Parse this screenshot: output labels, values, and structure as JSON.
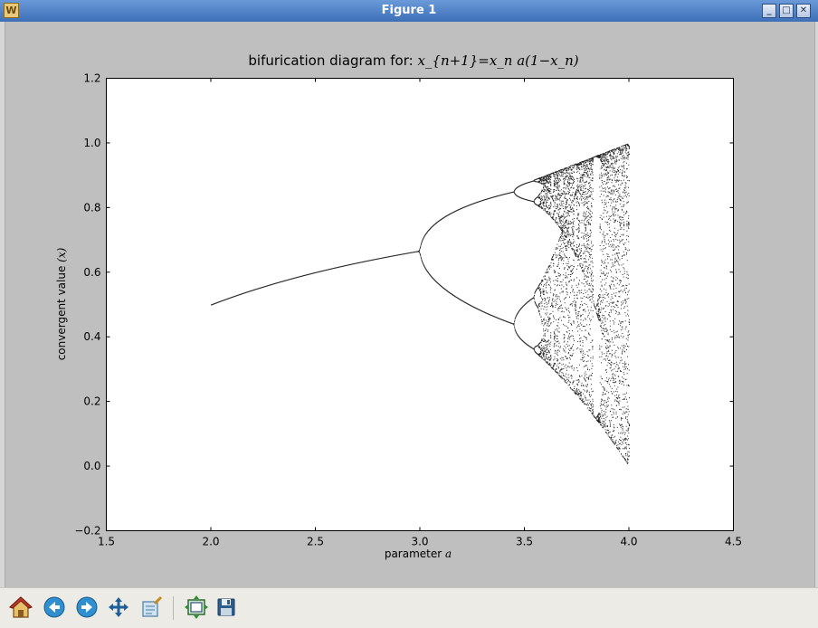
{
  "window": {
    "title": "Figure 1"
  },
  "toolbar": {
    "buttons": [
      {
        "name": "home-button",
        "icon": "home-icon"
      },
      {
        "name": "back-button",
        "icon": "back-arrow-icon"
      },
      {
        "name": "forward-button",
        "icon": "forward-arrow-icon"
      },
      {
        "name": "pan-button",
        "icon": "move-icon"
      },
      {
        "name": "zoom-button",
        "icon": "zoom-rect-icon"
      },
      {
        "name": "subplots-button",
        "icon": "subplots-icon"
      },
      {
        "name": "save-button",
        "icon": "save-icon"
      }
    ]
  },
  "chart_data": {
    "type": "scatter",
    "title_text": "bifurication diagram for: ",
    "title_math": "x_{n+1}=x_n a(1−x_n)",
    "xlabel_text": "parameter ",
    "xlabel_math": "a",
    "ylabel_text": "convergent value ",
    "ylabel_math": "(x)",
    "xlim": [
      1.5,
      4.5
    ],
    "ylim": [
      -0.2,
      1.2
    ],
    "xticks": [
      "1.5",
      "2.0",
      "2.5",
      "3.0",
      "3.5",
      "4.0",
      "4.5"
    ],
    "yticks": [
      "−0.2",
      "0.0",
      "0.2",
      "0.4",
      "0.6",
      "0.8",
      "1.0",
      "1.2"
    ],
    "series": [
      {
        "equation": "x_{n+1} = x_n a (1 − x_n)",
        "a_range": [
          2.0,
          4.0
        ],
        "marker_color": "#000000"
      }
    ],
    "grid": false
  }
}
